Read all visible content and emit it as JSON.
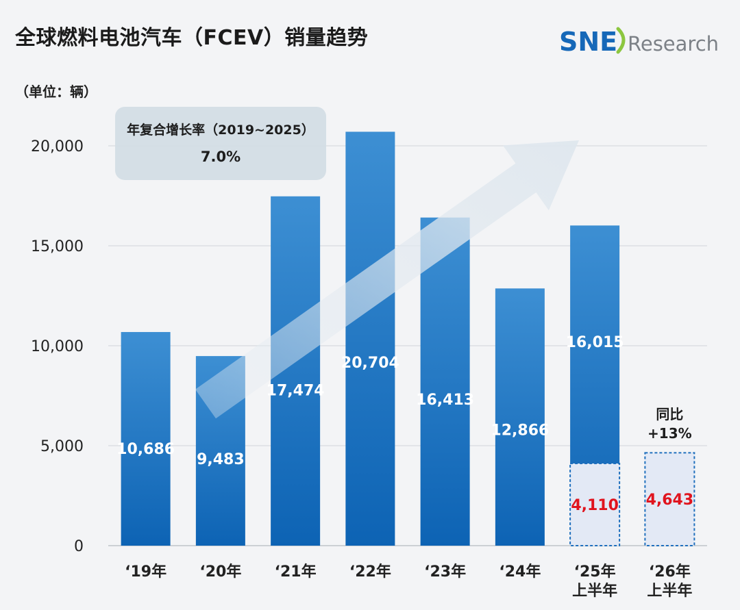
{
  "header": {
    "title": "全球燃料电池汽车（FCEV）销量趋势",
    "logo_sne": "SNE",
    "logo_research": "Research",
    "unit": "（单位：辆）"
  },
  "colors": {
    "bar_top": "#3d8fd3",
    "bar_bottom": "#0d63b4",
    "dashed_box": "#1f6fbd",
    "dashed_fill": "#e3e9f5",
    "red_text": "#e0141e",
    "arrow": "#dfe7ee",
    "logo_blue": "#1668b8",
    "logo_green": "#8cc63f",
    "logo_gray": "#7c8187"
  },
  "chart_data": {
    "type": "bar",
    "categories": [
      "‘19年",
      "‘20年",
      "‘21年",
      "‘22年",
      "‘23年",
      "‘24年",
      "‘25年\n上半年",
      "‘26年\n上半年"
    ],
    "values": [
      10686,
      9483,
      17474,
      20704,
      16413,
      12866,
      16015,
      null
    ],
    "value_labels": [
      "10,686",
      "9,483",
      "17,474",
      "20,704",
      "16,413",
      "12,866",
      "16,015",
      ""
    ],
    "half_year_values": [
      null,
      null,
      null,
      null,
      null,
      null,
      4110,
      4643
    ],
    "half_year_labels": [
      "",
      "",
      "",
      "",
      "",
      "",
      "4,110",
      "4,643"
    ],
    "ylim": [
      0,
      20000
    ],
    "yticks": [
      0,
      5000,
      10000,
      15000,
      20000
    ],
    "ytick_labels": [
      "0",
      "5,000",
      "10,000",
      "15,000",
      "20,000"
    ],
    "grid": true,
    "annotations": {
      "cagr_title": "年复合增长率（2019~2025）",
      "cagr_value": "7.0%",
      "yoy_line1": "同比",
      "yoy_line2": "+13%"
    }
  }
}
